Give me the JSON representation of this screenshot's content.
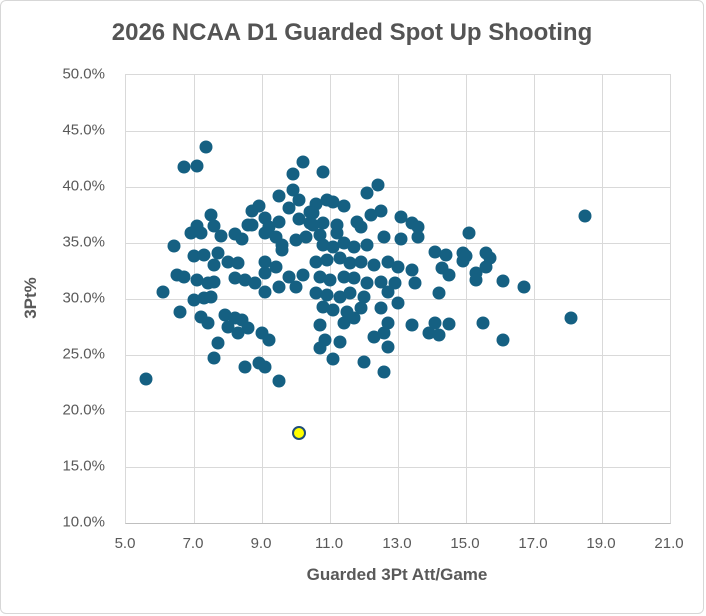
{
  "chart_data": {
    "type": "scatter",
    "title": "2026 NCAA D1 Guarded Spot Up Shooting",
    "xlabel": "Guarded 3Pt Att/Game",
    "ylabel": "3Pt%",
    "xlim": [
      5.0,
      21.0
    ],
    "ylim": [
      10.0,
      50.0
    ],
    "grid": true,
    "legend": "none",
    "xticks": [
      {
        "label": "5.0",
        "value": 5.0
      },
      {
        "label": "7.0",
        "value": 7.0
      },
      {
        "label": "9.0",
        "value": 9.0
      },
      {
        "label": "11.0",
        "value": 11.0
      },
      {
        "label": "13.0",
        "value": 13.0
      },
      {
        "label": "15.0",
        "value": 15.0
      },
      {
        "label": "17.0",
        "value": 17.0
      },
      {
        "label": "19.0",
        "value": 19.0
      },
      {
        "label": "21.0",
        "value": 21.0
      }
    ],
    "yticks": [
      {
        "label": "10.0%",
        "value": 10.0
      },
      {
        "label": "15.0%",
        "value": 15.0
      },
      {
        "label": "20.0%",
        "value": 20.0
      },
      {
        "label": "25.0%",
        "value": 25.0
      },
      {
        "label": "30.0%",
        "value": 30.0
      },
      {
        "label": "35.0%",
        "value": 35.0
      },
      {
        "label": "40.0%",
        "value": 40.0
      },
      {
        "label": "45.0%",
        "value": 45.0
      },
      {
        "label": "50.0%",
        "value": 50.0
      }
    ],
    "series": [
      {
        "name": "players",
        "marker_color": "#156082",
        "points": [
          [
            7.35,
            43.6
          ],
          [
            6.7,
            41.8
          ],
          [
            7.1,
            41.9
          ],
          [
            10.2,
            42.2
          ],
          [
            9.9,
            41.2
          ],
          [
            9.5,
            39.2
          ],
          [
            9.9,
            39.7
          ],
          [
            10.1,
            38.8
          ],
          [
            9.8,
            38.1
          ],
          [
            10.4,
            37.8
          ],
          [
            8.7,
            37.9
          ],
          [
            8.9,
            38.3
          ],
          [
            7.5,
            37.5
          ],
          [
            7.6,
            36.5
          ],
          [
            9.1,
            37.2
          ],
          [
            8.6,
            36.6
          ],
          [
            9.2,
            36.4
          ],
          [
            9.5,
            36.9
          ],
          [
            10.1,
            37.1
          ],
          [
            10.4,
            36.8
          ],
          [
            7.1,
            36.5
          ],
          [
            8.7,
            36.6
          ],
          [
            10.8,
            41.3
          ],
          [
            12.4,
            40.2
          ],
          [
            12.1,
            39.5
          ],
          [
            10.6,
            38.5
          ],
          [
            10.9,
            38.8
          ],
          [
            11.1,
            38.7
          ],
          [
            11.4,
            38.3
          ],
          [
            10.8,
            36.8
          ],
          [
            11.2,
            36.6
          ],
          [
            11.8,
            36.9
          ],
          [
            11.9,
            36.4
          ],
          [
            12.2,
            37.5
          ],
          [
            12.5,
            37.9
          ],
          [
            13.1,
            37.3
          ],
          [
            13.4,
            36.8
          ],
          [
            13.6,
            36.4
          ],
          [
            10.5,
            37.7
          ],
          [
            10.5,
            36.6
          ],
          [
            18.5,
            37.4
          ],
          [
            15.1,
            35.9
          ],
          [
            6.9,
            35.9
          ],
          [
            7.2,
            35.9
          ],
          [
            7.8,
            35.6
          ],
          [
            8.2,
            35.8
          ],
          [
            8.4,
            35.4
          ],
          [
            9.1,
            35.9
          ],
          [
            9.4,
            35.5
          ],
          [
            9.6,
            34.8
          ],
          [
            10.0,
            35.3
          ],
          [
            10.3,
            35.5
          ],
          [
            6.4,
            34.7
          ],
          [
            7.0,
            33.8
          ],
          [
            7.3,
            33.9
          ],
          [
            7.7,
            34.1
          ],
          [
            8.0,
            33.3
          ],
          [
            8.3,
            33.2
          ],
          [
            7.6,
            33.0
          ],
          [
            9.1,
            33.3
          ],
          [
            9.4,
            32.9
          ],
          [
            9.6,
            34.4
          ],
          [
            9.1,
            32.3
          ],
          [
            6.5,
            32.1
          ],
          [
            6.7,
            32.0
          ],
          [
            6.1,
            30.6
          ],
          [
            7.1,
            31.7
          ],
          [
            7.4,
            31.4
          ],
          [
            7.6,
            31.5
          ],
          [
            8.2,
            31.9
          ],
          [
            8.5,
            31.7
          ],
          [
            8.8,
            31.4
          ],
          [
            9.1,
            30.6
          ],
          [
            9.5,
            31.1
          ],
          [
            9.8,
            32.0
          ],
          [
            10.2,
            32.1
          ],
          [
            7.0,
            29.9
          ],
          [
            7.3,
            30.1
          ],
          [
            7.5,
            30.2
          ],
          [
            6.6,
            28.8
          ],
          [
            7.2,
            28.4
          ],
          [
            7.4,
            27.9
          ],
          [
            7.9,
            28.6
          ],
          [
            8.2,
            28.3
          ],
          [
            8.4,
            28.1
          ],
          [
            8.0,
            27.5
          ],
          [
            8.3,
            27.0
          ],
          [
            8.6,
            27.4
          ],
          [
            9.0,
            27.0
          ],
          [
            7.7,
            26.1
          ],
          [
            9.2,
            26.3
          ],
          [
            7.6,
            24.7
          ],
          [
            8.5,
            23.9
          ],
          [
            8.9,
            24.3
          ],
          [
            9.1,
            23.9
          ],
          [
            5.6,
            22.9
          ],
          [
            10.0,
            31.1
          ],
          [
            9.5,
            22.7
          ],
          [
            10.7,
            35.7
          ],
          [
            11.2,
            35.9
          ],
          [
            12.6,
            35.5
          ],
          [
            13.1,
            35.4
          ],
          [
            13.6,
            35.5
          ],
          [
            10.8,
            34.8
          ],
          [
            11.1,
            34.6
          ],
          [
            11.4,
            35.0
          ],
          [
            11.7,
            34.6
          ],
          [
            12.1,
            34.8
          ],
          [
            14.1,
            34.2
          ],
          [
            14.4,
            33.9
          ],
          [
            14.9,
            34.1
          ],
          [
            10.6,
            33.3
          ],
          [
            10.9,
            33.5
          ],
          [
            11.3,
            33.7
          ],
          [
            11.6,
            33.2
          ],
          [
            11.9,
            33.3
          ],
          [
            12.3,
            33.0
          ],
          [
            12.7,
            33.3
          ],
          [
            13.0,
            32.9
          ],
          [
            13.4,
            32.6
          ],
          [
            14.3,
            32.8
          ],
          [
            15.3,
            32.3
          ],
          [
            10.7,
            32.0
          ],
          [
            11.0,
            31.7
          ],
          [
            11.4,
            32.0
          ],
          [
            11.7,
            31.9
          ],
          [
            12.1,
            31.4
          ],
          [
            12.5,
            31.5
          ],
          [
            12.9,
            31.4
          ],
          [
            13.5,
            31.4
          ],
          [
            10.6,
            30.5
          ],
          [
            10.9,
            30.4
          ],
          [
            11.3,
            30.2
          ],
          [
            11.6,
            30.5
          ],
          [
            12.0,
            30.2
          ],
          [
            12.7,
            30.6
          ],
          [
            14.2,
            30.5
          ],
          [
            10.8,
            29.3
          ],
          [
            11.1,
            29.0
          ],
          [
            11.9,
            29.2
          ],
          [
            11.5,
            28.8
          ],
          [
            12.5,
            29.2
          ],
          [
            13.0,
            29.6
          ],
          [
            10.7,
            27.7
          ],
          [
            11.4,
            27.9
          ],
          [
            11.7,
            28.3
          ],
          [
            12.7,
            27.9
          ],
          [
            13.4,
            27.7
          ],
          [
            14.1,
            27.9
          ],
          [
            14.5,
            27.8
          ],
          [
            15.5,
            27.9
          ],
          [
            10.85,
            26.3
          ],
          [
            11.3,
            26.2
          ],
          [
            12.3,
            26.6
          ],
          [
            12.6,
            27.0
          ],
          [
            12.7,
            25.7
          ],
          [
            10.7,
            25.6
          ],
          [
            11.1,
            24.6
          ],
          [
            12.0,
            24.4
          ],
          [
            12.6,
            23.5
          ],
          [
            14.9,
            33.4
          ],
          [
            15.0,
            33.8
          ],
          [
            15.6,
            34.1
          ],
          [
            15.7,
            33.7
          ],
          [
            15.6,
            32.9
          ],
          [
            14.5,
            32.1
          ],
          [
            15.3,
            31.7
          ],
          [
            16.1,
            31.6
          ],
          [
            16.7,
            31.1
          ],
          [
            16.1,
            26.3
          ],
          [
            18.1,
            28.3
          ],
          [
            13.9,
            27.0
          ],
          [
            14.2,
            26.8
          ]
        ]
      },
      {
        "name": "highlighted-player",
        "marker_color": "#FFFF00",
        "marker_border_color": "#1F4E79",
        "points": [
          [
            10.1,
            18.0
          ]
        ]
      }
    ]
  },
  "colors": {
    "dot": "#156082",
    "highlight_fill": "#FFFF00",
    "highlight_border": "#1F4E79",
    "gridline": "#D9D9D9",
    "axis_line": "#BFBFBF",
    "title_text": "#545454",
    "label_text": "#595959",
    "background": "#FFFFFF"
  }
}
